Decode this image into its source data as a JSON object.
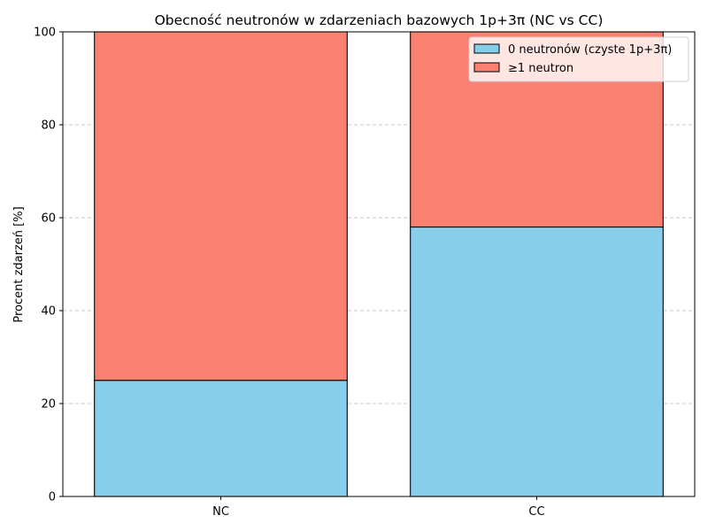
{
  "chart_data": {
    "type": "bar",
    "stacked": true,
    "title": "Obecność neutronów w zdarzeniach bazowych 1p+3π (NC vs CC)",
    "xlabel": "",
    "ylabel": "Procent zdarzeń [%]",
    "categories": [
      "NC",
      "CC"
    ],
    "ylim": [
      0,
      100
    ],
    "yticks": [
      0,
      20,
      40,
      60,
      80,
      100
    ],
    "grid": "y-dashed",
    "legend_position": "top-right",
    "series": [
      {
        "name": "0 neutronów (czyste 1p+3π)",
        "values": [
          25,
          58
        ],
        "color": "#87ceeb"
      },
      {
        "name": "≥1 neutron",
        "values": [
          75,
          42
        ],
        "color": "#fa8072"
      }
    ]
  }
}
